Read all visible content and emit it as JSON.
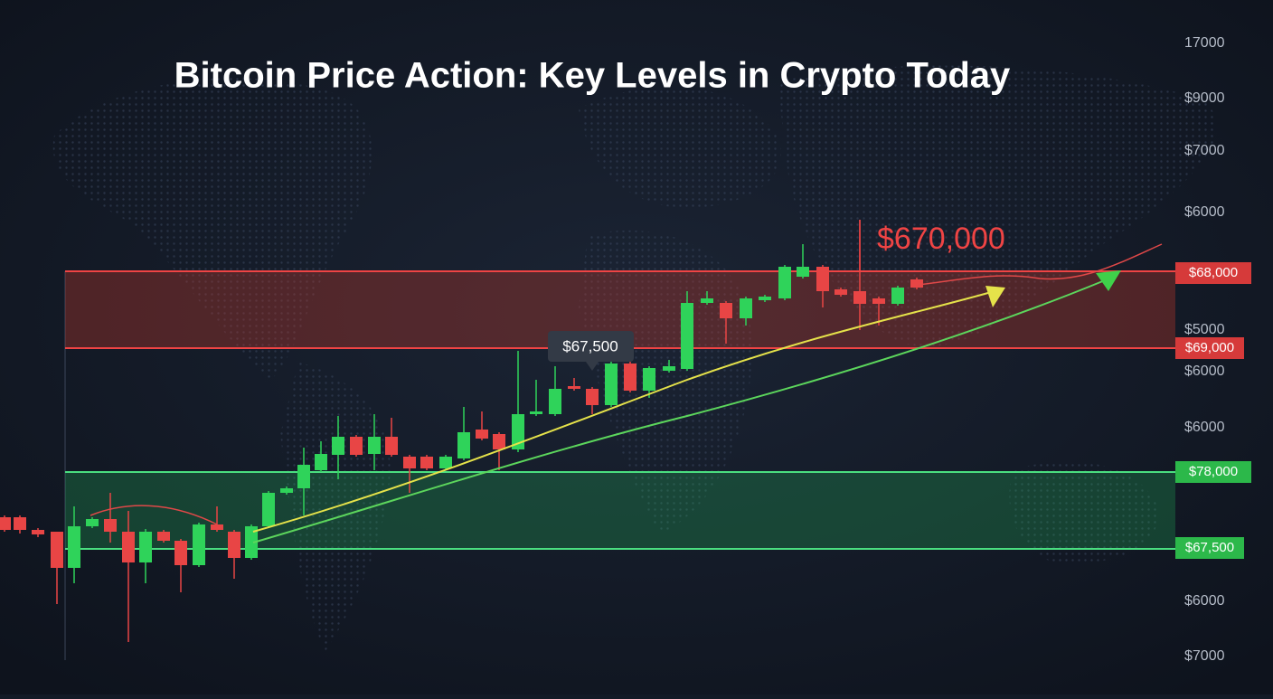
{
  "title": "Bitcoin Price Action: Key Levels in Crypto Today",
  "axis_labels": [
    "17000",
    "$9000",
    "$7000",
    "$6000",
    "$5000",
    "$6000",
    "$6000",
    "$6000",
    "$7000"
  ],
  "levels": {
    "resistance": [
      "$68,000",
      "$69,000"
    ],
    "support": [
      "$78,000",
      "$67,500"
    ]
  },
  "annotations": {
    "target": "$670,000",
    "tooltip": "$67,500"
  }
}
